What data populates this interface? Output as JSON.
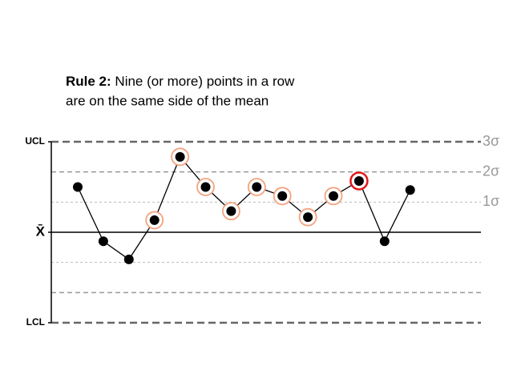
{
  "chart_data": {
    "type": "line",
    "title_bold": "Rule 2:",
    "title_lines": [
      "Nine (or more) points in a row",
      "are on the same side of the mean"
    ],
    "series": [
      {
        "color": "#000000",
        "values": [
          1.5,
          -0.3,
          -0.9,
          0.4,
          2.5,
          1.5,
          0.7,
          1.5,
          1.2,
          0.5,
          1.2,
          1.7,
          -0.3,
          1.4
        ]
      }
    ],
    "ylim": [
      -3,
      3
    ],
    "yticks": [
      {
        "value": 3,
        "label": "UCL"
      },
      {
        "value": 0,
        "label": "X̄"
      },
      {
        "value": -3,
        "label": "LCL"
      }
    ],
    "sigma_ticks": [
      {
        "value": 3,
        "label": "3σ"
      },
      {
        "value": 2,
        "label": "2σ"
      },
      {
        "value": 1,
        "label": "1σ"
      }
    ],
    "grid_levels": [
      3,
      2,
      1,
      -1,
      -2,
      -3
    ],
    "highlighted": [
      3,
      4,
      5,
      6,
      7,
      8,
      9,
      10,
      11
    ],
    "highlight_color": "#f4a27e",
    "alert_index": 11,
    "alert_color": "#e3191c"
  }
}
